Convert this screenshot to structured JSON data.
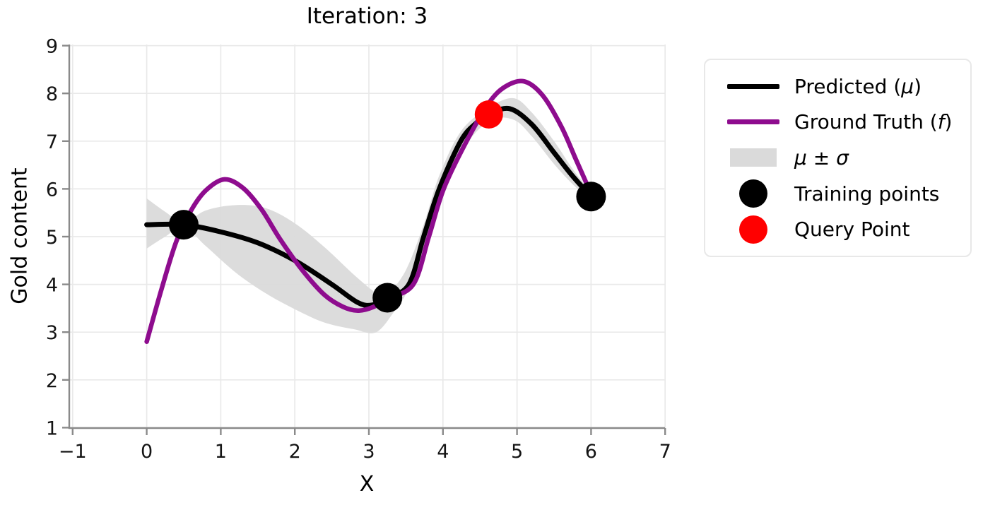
{
  "chart_data": {
    "type": "line",
    "title": "Iteration: 3",
    "xlabel": "X",
    "ylabel": "Gold content",
    "xticks": [
      -1,
      0,
      1,
      2,
      3,
      4,
      5,
      6,
      7
    ],
    "yticks": [
      1,
      2,
      3,
      4,
      5,
      6,
      7,
      8,
      9
    ],
    "xlim": [
      -1.05,
      7.0
    ],
    "ylim": [
      1.0,
      9.03
    ],
    "grid": true,
    "legend_position": "outside-right",
    "series": [
      {
        "name": "Predicted (μ)",
        "type": "line",
        "color": "#000000",
        "points": [
          [
            0,
            5.25
          ],
          [
            0.5,
            5.25
          ],
          [
            1.0,
            5.1
          ],
          [
            1.5,
            4.87
          ],
          [
            2.0,
            4.5
          ],
          [
            2.5,
            4.0
          ],
          [
            2.85,
            3.62
          ],
          [
            3.05,
            3.57
          ],
          [
            3.25,
            3.72
          ],
          [
            3.54,
            4.0
          ],
          [
            3.74,
            5.0
          ],
          [
            3.95,
            6.0
          ],
          [
            4.24,
            7.0
          ],
          [
            4.45,
            7.38
          ],
          [
            4.62,
            7.56
          ],
          [
            4.9,
            7.68
          ],
          [
            5.2,
            7.35
          ],
          [
            5.5,
            6.76
          ],
          [
            5.75,
            6.27
          ],
          [
            6.0,
            5.84
          ]
        ]
      },
      {
        "name": "Ground Truth (f)",
        "type": "line",
        "color": "#8E0C8E",
        "points": [
          [
            0,
            2.8
          ],
          [
            0.2,
            3.9
          ],
          [
            0.4,
            4.9
          ],
          [
            0.6,
            5.55
          ],
          [
            0.8,
            5.97
          ],
          [
            1.05,
            6.2
          ],
          [
            1.3,
            6.02
          ],
          [
            1.55,
            5.57
          ],
          [
            1.8,
            4.95
          ],
          [
            2.1,
            4.3
          ],
          [
            2.4,
            3.78
          ],
          [
            2.65,
            3.53
          ],
          [
            2.85,
            3.45
          ],
          [
            3.05,
            3.52
          ],
          [
            3.25,
            3.7
          ],
          [
            3.6,
            4.0
          ],
          [
            3.81,
            5.0
          ],
          [
            4.01,
            6.0
          ],
          [
            4.32,
            7.0
          ],
          [
            4.62,
            7.8
          ],
          [
            4.85,
            8.15
          ],
          [
            5.1,
            8.25
          ],
          [
            5.35,
            7.95
          ],
          [
            5.6,
            7.3
          ],
          [
            5.8,
            6.6
          ],
          [
            6.0,
            5.9
          ]
        ]
      },
      {
        "name": "μ ± σ",
        "type": "band",
        "color": "#DADADA",
        "upper": [
          [
            0,
            5.8
          ],
          [
            0.25,
            5.52
          ],
          [
            0.5,
            5.3
          ],
          [
            0.8,
            5.55
          ],
          [
            1.2,
            5.66
          ],
          [
            1.6,
            5.6
          ],
          [
            2.0,
            5.28
          ],
          [
            2.4,
            4.78
          ],
          [
            2.8,
            4.2
          ],
          [
            3.1,
            3.82
          ],
          [
            3.25,
            3.8
          ],
          [
            3.5,
            4.3
          ],
          [
            3.75,
            5.3
          ],
          [
            3.95,
            6.28
          ],
          [
            4.25,
            7.22
          ],
          [
            4.62,
            7.7
          ],
          [
            4.95,
            7.9
          ],
          [
            5.2,
            7.6
          ],
          [
            5.5,
            7.0
          ],
          [
            5.75,
            6.42
          ],
          [
            6.0,
            5.92
          ]
        ],
        "lower": [
          [
            0,
            4.75
          ],
          [
            0.25,
            5.0
          ],
          [
            0.5,
            5.2
          ],
          [
            0.8,
            4.8
          ],
          [
            1.2,
            4.25
          ],
          [
            1.6,
            3.82
          ],
          [
            2.0,
            3.48
          ],
          [
            2.4,
            3.2
          ],
          [
            2.8,
            3.06
          ],
          [
            3.1,
            3.0
          ],
          [
            3.35,
            3.45
          ],
          [
            3.5,
            3.8
          ],
          [
            3.75,
            4.7
          ],
          [
            3.95,
            5.72
          ],
          [
            4.25,
            6.78
          ],
          [
            4.62,
            7.42
          ],
          [
            4.95,
            7.45
          ],
          [
            5.2,
            7.1
          ],
          [
            5.5,
            6.52
          ],
          [
            5.75,
            6.1
          ],
          [
            6.0,
            5.76
          ]
        ]
      },
      {
        "name": "Training points",
        "type": "scatter",
        "color": "#000000",
        "points": [
          [
            0.5,
            5.25
          ],
          [
            3.25,
            3.72
          ],
          [
            6.0,
            5.84
          ]
        ]
      },
      {
        "name": "Query Point",
        "type": "scatter",
        "color": "#FF0000",
        "points": [
          [
            4.62,
            7.56
          ]
        ]
      }
    ]
  },
  "legend": {
    "items": [
      {
        "id": "predicted",
        "swatch": "line",
        "color": "#000000",
        "label_pre": "Predicted (",
        "label_math": "μ",
        "label_post": ")"
      },
      {
        "id": "ground-truth",
        "swatch": "line",
        "color": "#8E0C8E",
        "label_pre": "Ground Truth (",
        "label_math": "f",
        "label_post": ")"
      },
      {
        "id": "mu-sigma-band",
        "swatch": "band",
        "color": "#DADADA",
        "label_pre": "",
        "label_math": "μ ± σ",
        "label_post": ""
      },
      {
        "id": "training-points",
        "swatch": "dot",
        "color": "#000000",
        "label_pre": "Training points",
        "label_math": "",
        "label_post": ""
      },
      {
        "id": "query-point",
        "swatch": "dot",
        "color": "#FF0000",
        "label_pre": "Query Point",
        "label_math": "",
        "label_post": ""
      }
    ]
  },
  "colors": {
    "predicted": "#000000",
    "ground_truth": "#8E0C8E",
    "band": "#DADADA",
    "training_points": "#000000",
    "query_point": "#FF0000",
    "grid": "#E9E9E9",
    "spine": "#8A8A8A",
    "tick_label": "#141414"
  }
}
